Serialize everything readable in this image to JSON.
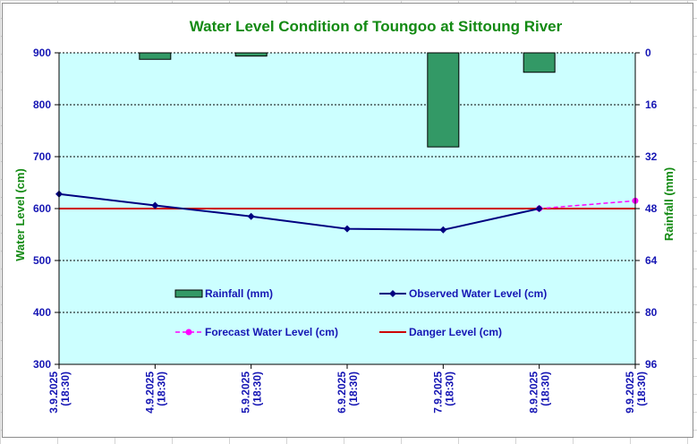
{
  "chart_data": {
    "type": "line",
    "title": "Water Level Condition of Toungoo at  Sittoung River",
    "ylabel": "Water Level (cm)",
    "y2label": "Rainfall (mm)",
    "ylim": [
      300,
      900
    ],
    "y2lim": [
      0,
      96
    ],
    "y2_inverted": true,
    "yticks": [
      "300",
      "400",
      "500",
      "600",
      "700",
      "800",
      "900"
    ],
    "y2ticks": [
      "0",
      "16",
      "32",
      "48",
      "64",
      "80",
      "96"
    ],
    "categories": [
      {
        "date": "3.9.2025",
        "time": "(18:30)"
      },
      {
        "date": "4.9.2025",
        "time": "(18:30)"
      },
      {
        "date": "5.9.2025",
        "time": "(18:30)"
      },
      {
        "date": "6.9.2025",
        "time": "(18:30)"
      },
      {
        "date": "7.9.2025",
        "time": "(18:30)"
      },
      {
        "date": "8.9.2025",
        "time": "(18:30)"
      },
      {
        "date": "9.9.2025",
        "time": "(18:30)"
      }
    ],
    "series": [
      {
        "name": "Rainfall (mm)",
        "type": "bar",
        "axis": "right",
        "color": "#339966",
        "values": [
          null,
          2,
          1,
          null,
          29,
          6,
          null
        ]
      },
      {
        "name": "Observed Water Level (cm)",
        "type": "line",
        "axis": "left",
        "color": "#000080",
        "values": [
          628,
          606,
          585,
          561,
          559,
          600,
          null
        ]
      },
      {
        "name": "Forecast Water Level (cm)",
        "type": "line",
        "axis": "left",
        "color": "#ff00ff",
        "dashed": true,
        "values": [
          null,
          null,
          null,
          null,
          null,
          600,
          615
        ]
      },
      {
        "name": "Danger Level (cm)",
        "type": "line",
        "axis": "left",
        "color": "#cc0000",
        "values": [
          600,
          600,
          600,
          600,
          600,
          600,
          600
        ]
      }
    ],
    "plot_background": "#ccffff",
    "grid": true,
    "legend": "inside-bottom"
  }
}
